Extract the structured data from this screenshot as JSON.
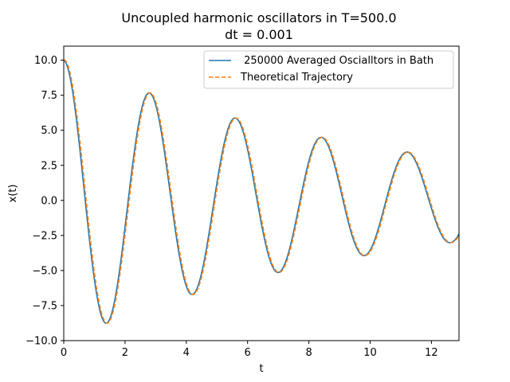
{
  "chart_data": {
    "type": "line",
    "title": "Uncoupled harmonic oscillators in T=500.0",
    "subtitle": "dt = 0.001",
    "xlabel": "t",
    "ylabel": "x(t)",
    "xlim": [
      0,
      12.9
    ],
    "ylim": [
      -10.0,
      11.0
    ],
    "xticks": [
      0,
      2,
      4,
      6,
      8,
      10,
      12
    ],
    "xtick_labels": [
      "0",
      "2",
      "4",
      "6",
      "8",
      "10",
      "12"
    ],
    "yticks": [
      -10.0,
      -7.5,
      -5.0,
      -2.5,
      0.0,
      2.5,
      5.0,
      7.5,
      10.0
    ],
    "ytick_labels": [
      "−10.0",
      "−7.5",
      "−5.0",
      "−2.5",
      "0.0",
      "2.5",
      "5.0",
      "7.5",
      "10.0"
    ],
    "grid": false,
    "legend_position": "top-right",
    "model": {
      "x0": 10.0,
      "omega": 2.24,
      "gamma": 0.095
    },
    "series": [
      {
        "name": " 250000 Averaged Oscialltors in Bath",
        "color": "#1f77b4",
        "style": "solid",
        "offset": 0.0
      },
      {
        "name": "Theoretical Trajectory",
        "color": "#ff7f0e",
        "style": "dashed",
        "offset": -0.03
      }
    ]
  }
}
